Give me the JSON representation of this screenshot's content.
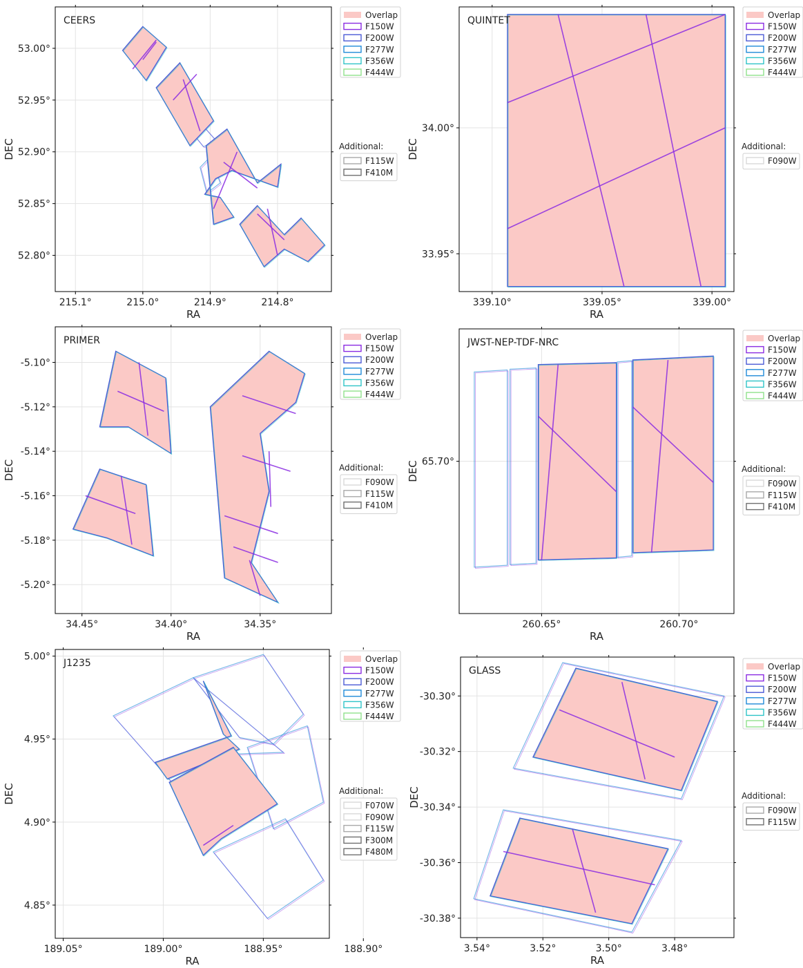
{
  "colors": {
    "overlap": "#fbc9c6",
    "F150W": "#8a2be2",
    "F200W": "#4b5ad6",
    "F277W": "#1f8ad8",
    "F356W": "#2fc4c8",
    "F444W": "#90e08c",
    "add_light": "#d8d8d8",
    "add_mid": "#a9a9a9",
    "add_dark": "#707070",
    "grid": "#e3e3e3",
    "axis": "#000000"
  },
  "legend_main": [
    "Overlap",
    "F150W",
    "F200W",
    "F277W",
    "F356W",
    "F444W"
  ],
  "additional_title": "Additional:",
  "chart_data": [
    {
      "type": "sky-footprint",
      "title": "CEERS",
      "xlabel": "RA",
      "ylabel": "DEC",
      "xlim": [
        215.13,
        214.72
      ],
      "ylim": [
        52.765,
        53.04
      ],
      "xticks": [
        {
          "v": 215.1,
          "label": "215.1°"
        },
        {
          "v": 215.0,
          "label": "215.0°"
        },
        {
          "v": 214.9,
          "label": "214.9°"
        },
        {
          "v": 214.8,
          "label": "214.8°"
        }
      ],
      "yticks": [
        {
          "v": 53.0,
          "label": "53.00°"
        },
        {
          "v": 52.95,
          "label": "52.95°"
        },
        {
          "v": 52.9,
          "label": "52.90°"
        },
        {
          "v": 52.85,
          "label": "52.85°"
        },
        {
          "v": 52.8,
          "label": "52.80°"
        }
      ],
      "additional": [
        "F115W",
        "F410M"
      ],
      "polygons": [
        [
          [
            215.03,
            52.998
          ],
          [
            215.0,
            53.021
          ],
          [
            214.965,
            53.001
          ],
          [
            214.995,
            52.969
          ]
        ],
        [
          [
            214.98,
            52.962
          ],
          [
            214.945,
            52.986
          ],
          [
            214.895,
            52.93
          ],
          [
            214.93,
            52.906
          ]
        ],
        [
          [
            214.906,
            52.906
          ],
          [
            214.875,
            52.922
          ],
          [
            214.83,
            52.87
          ],
          [
            214.795,
            52.888
          ],
          [
            214.8,
            52.866
          ],
          [
            214.868,
            52.882
          ],
          [
            214.892,
            52.874
          ],
          [
            214.908,
            52.859
          ],
          [
            214.885,
            52.856
          ],
          [
            214.865,
            52.837
          ],
          [
            214.895,
            52.83
          ]
        ],
        [
          [
            214.856,
            52.83
          ],
          [
            214.83,
            52.848
          ],
          [
            214.79,
            52.82
          ],
          [
            214.765,
            52.836
          ],
          [
            214.73,
            52.81
          ],
          [
            214.755,
            52.794
          ],
          [
            214.79,
            52.806
          ],
          [
            214.82,
            52.789
          ]
        ]
      ],
      "segments": [
        [
          [
            215.0,
            52.989
          ],
          [
            214.98,
            53.006
          ]
        ],
        [
          [
            215.015,
            52.98
          ],
          [
            214.98,
            53.008
          ]
        ],
        [
          [
            214.955,
            52.95
          ],
          [
            214.92,
            52.975
          ]
        ],
        [
          [
            214.94,
            52.97
          ],
          [
            214.915,
            52.92
          ]
        ],
        [
          [
            214.88,
            52.89
          ],
          [
            214.83,
            52.865
          ]
        ],
        [
          [
            214.86,
            52.9
          ],
          [
            214.895,
            52.845
          ]
        ],
        [
          [
            214.83,
            52.84
          ],
          [
            214.79,
            52.815
          ]
        ],
        [
          [
            214.815,
            52.845
          ],
          [
            214.8,
            52.8
          ]
        ]
      ],
      "outlines_extra": [
        [
          [
            214.935,
            52.925
          ],
          [
            214.91,
            52.905
          ],
          [
            214.89,
            52.91
          ],
          [
            214.92,
            52.932
          ]
        ],
        [
          [
            214.9,
            52.895
          ],
          [
            214.885,
            52.87
          ],
          [
            214.905,
            52.86
          ],
          [
            214.915,
            52.885
          ]
        ]
      ]
    },
    {
      "type": "sky-footprint",
      "title": "QUINTET",
      "xlabel": "RA",
      "ylabel": "DEC",
      "xlim": [
        339.115,
        338.99
      ],
      "ylim": [
        33.935,
        34.048
      ],
      "xticks": [
        {
          "v": 339.1,
          "label": "339.10°"
        },
        {
          "v": 339.05,
          "label": "339.05°"
        },
        {
          "v": 339.0,
          "label": "339.00°"
        }
      ],
      "yticks": [
        {
          "v": 34.0,
          "label": "34.00°"
        },
        {
          "v": 33.95,
          "label": "33.95°"
        }
      ],
      "additional": [
        "F090W"
      ],
      "polygons": [
        [
          [
            339.093,
            34.045
          ],
          [
            338.994,
            34.045
          ],
          [
            338.994,
            33.937
          ],
          [
            339.093,
            33.937
          ]
        ]
      ],
      "segments": [
        [
          [
            339.093,
            34.01
          ],
          [
            338.994,
            34.045
          ]
        ],
        [
          [
            339.093,
            33.96
          ],
          [
            338.994,
            34.0
          ]
        ],
        [
          [
            339.07,
            34.045
          ],
          [
            339.04,
            33.937
          ]
        ],
        [
          [
            339.03,
            34.045
          ],
          [
            339.005,
            33.937
          ]
        ]
      ],
      "outlines_extra": []
    },
    {
      "type": "sky-footprint",
      "title": "PRIMER",
      "xlabel": "RA",
      "ylabel": "DEC",
      "xlim": [
        34.465,
        34.31
      ],
      "ylim": [
        -5.213,
        -5.084
      ],
      "xticks": [
        {
          "v": 34.45,
          "label": "34.45°"
        },
        {
          "v": 34.4,
          "label": "34.40°"
        },
        {
          "v": 34.35,
          "label": "34.35°"
        }
      ],
      "yticks": [
        {
          "v": -5.1,
          "label": "-5.10°"
        },
        {
          "v": -5.12,
          "label": "-5.12°"
        },
        {
          "v": -5.14,
          "label": "-5.14°"
        },
        {
          "v": -5.16,
          "label": "-5.16°"
        },
        {
          "v": -5.18,
          "label": "-5.18°"
        },
        {
          "v": -5.2,
          "label": "-5.20°"
        }
      ],
      "additional": [
        "F090W",
        "F115W",
        "F410M"
      ],
      "polygons": [
        [
          [
            34.431,
            -5.095
          ],
          [
            34.403,
            -5.107
          ],
          [
            34.4,
            -5.141
          ],
          [
            34.424,
            -5.129
          ],
          [
            34.44,
            -5.129
          ]
        ],
        [
          [
            34.44,
            -5.148
          ],
          [
            34.414,
            -5.155
          ],
          [
            34.41,
            -5.187
          ],
          [
            34.436,
            -5.179
          ],
          [
            34.455,
            -5.175
          ]
        ],
        [
          [
            34.345,
            -5.095
          ],
          [
            34.325,
            -5.105
          ],
          [
            34.33,
            -5.118
          ],
          [
            34.35,
            -5.132
          ],
          [
            34.345,
            -5.158
          ],
          [
            34.355,
            -5.19
          ],
          [
            34.34,
            -5.208
          ],
          [
            34.37,
            -5.197
          ],
          [
            34.378,
            -5.12
          ]
        ]
      ],
      "segments": [
        [
          [
            34.43,
            -5.113
          ],
          [
            34.404,
            -5.122
          ]
        ],
        [
          [
            34.418,
            -5.1
          ],
          [
            34.413,
            -5.133
          ]
        ],
        [
          [
            34.448,
            -5.16
          ],
          [
            34.42,
            -5.168
          ]
        ],
        [
          [
            34.428,
            -5.151
          ],
          [
            34.422,
            -5.182
          ]
        ],
        [
          [
            34.36,
            -5.115
          ],
          [
            34.33,
            -5.123
          ]
        ],
        [
          [
            34.36,
            -5.142
          ],
          [
            34.333,
            -5.149
          ]
        ],
        [
          [
            34.37,
            -5.169
          ],
          [
            34.34,
            -5.177
          ]
        ],
        [
          [
            34.365,
            -5.183
          ],
          [
            34.34,
            -5.19
          ]
        ],
        [
          [
            34.356,
            -5.189
          ],
          [
            34.35,
            -5.205
          ]
        ],
        [
          [
            34.345,
            -5.14
          ],
          [
            34.344,
            -5.165
          ]
        ]
      ],
      "outlines_extra": []
    },
    {
      "type": "sky-footprint",
      "title": "JWST-NEP-TDF-NRC",
      "xlabel": "RA",
      "ylabel": "DEC",
      "xlim": [
        260.62,
        260.72
      ],
      "ylim": [
        65.677,
        65.72
      ],
      "xticks": [
        {
          "v": 260.65,
          "label": "260.65°"
        },
        {
          "v": 260.7,
          "label": "260.70°"
        }
      ],
      "yticks": [
        {
          "v": 65.7,
          "label": "65.70°"
        }
      ],
      "additional": [
        "F090W",
        "F115W",
        "F410M"
      ],
      "polygons": [
        [
          [
            260.6488,
            65.7146
          ],
          [
            260.6772,
            65.7149
          ],
          [
            260.6772,
            65.6854
          ],
          [
            260.6488,
            65.6851
          ]
        ],
        [
          [
            260.6832,
            65.7153
          ],
          [
            260.7125,
            65.7159
          ],
          [
            260.7125,
            65.6866
          ],
          [
            260.6832,
            65.6862
          ]
        ]
      ],
      "segments": [
        [
          [
            260.656,
            65.7146
          ],
          [
            260.65,
            65.6851
          ]
        ],
        [
          [
            260.696,
            65.7153
          ],
          [
            260.69,
            65.6862
          ]
        ],
        [
          [
            260.6488,
            65.7068
          ],
          [
            260.6772,
            65.6954
          ]
        ],
        [
          [
            260.6832,
            65.7082
          ],
          [
            260.7125,
            65.6968
          ]
        ]
      ],
      "outlines_extra": [
        [
          [
            260.6255,
            65.7135
          ],
          [
            260.6375,
            65.7138
          ],
          [
            260.6375,
            65.6843
          ],
          [
            260.6255,
            65.684
          ]
        ],
        [
          [
            260.6385,
            65.7139
          ],
          [
            260.648,
            65.7141
          ],
          [
            260.648,
            65.6846
          ],
          [
            260.6385,
            65.6844
          ]
        ],
        [
          [
            260.6775,
            65.715
          ],
          [
            260.6828,
            65.7152
          ],
          [
            260.6828,
            65.6857
          ],
          [
            260.6775,
            65.6855
          ]
        ]
      ]
    },
    {
      "type": "sky-footprint",
      "title": "J1235",
      "xlabel": "RA",
      "ylabel": "DEC",
      "xlim": [
        189.054,
        188.917
      ],
      "ylim": [
        4.83,
        5.004
      ],
      "xticks": [
        {
          "v": 189.05,
          "label": "189.05°"
        },
        {
          "v": 189.0,
          "label": "189.00°"
        },
        {
          "v": 188.95,
          "label": "188.95°"
        },
        {
          "v": 188.9,
          "label": "188.90°"
        }
      ],
      "yticks": [
        {
          "v": 5.0,
          "label": "5.00°"
        },
        {
          "v": 4.95,
          "label": "4.95°"
        },
        {
          "v": 4.9,
          "label": "4.90°"
        },
        {
          "v": 4.85,
          "label": "4.85°"
        }
      ],
      "additional": [
        "F070W",
        "F090W",
        "F115W",
        "F300M",
        "F480M"
      ],
      "polygons": [
        [
          [
            188.98,
            4.985
          ],
          [
            188.97,
            4.953
          ],
          [
            188.962,
            4.944
          ],
          [
            188.998,
            4.926
          ],
          [
            189.004,
            4.936
          ],
          [
            188.966,
            4.952
          ]
        ],
        [
          [
            188.997,
            4.924
          ],
          [
            188.965,
            4.945
          ],
          [
            188.943,
            4.911
          ],
          [
            188.971,
            4.89
          ],
          [
            188.98,
            4.88
          ]
        ]
      ],
      "segments": [
        [
          [
            188.98,
            4.886
          ],
          [
            188.965,
            4.898
          ]
        ]
      ],
      "outlines_extra": [
        [
          [
            189.025,
            4.964
          ],
          [
            188.985,
            4.987
          ],
          [
            188.94,
            4.942
          ],
          [
            188.965,
            4.941
          ],
          [
            188.995,
            4.923
          ]
        ],
        [
          [
            188.985,
            4.987
          ],
          [
            188.95,
            5.001
          ],
          [
            188.93,
            4.965
          ],
          [
            188.945,
            4.947
          ],
          [
            188.962,
            4.951
          ]
        ],
        [
          [
            188.958,
            4.945
          ],
          [
            188.928,
            4.958
          ],
          [
            188.92,
            4.912
          ],
          [
            188.945,
            4.896
          ]
        ],
        [
          [
            188.975,
            4.882
          ],
          [
            188.939,
            4.902
          ],
          [
            188.92,
            4.865
          ],
          [
            188.948,
            4.842
          ]
        ]
      ]
    },
    {
      "type": "sky-footprint",
      "title": "GLASS",
      "xlabel": "RA",
      "ylabel": "DEC",
      "xlim": [
        3.545,
        3.462
      ],
      "ylim": [
        -30.387,
        -30.286
      ],
      "xticks": [
        {
          "v": 3.54,
          "label": "3.54°"
        },
        {
          "v": 3.52,
          "label": "3.52°"
        },
        {
          "v": 3.5,
          "label": "3.50°"
        },
        {
          "v": 3.48,
          "label": "3.48°"
        }
      ],
      "yticks": [
        {
          "v": -30.3,
          "label": "-30.30°"
        },
        {
          "v": -30.32,
          "label": "-30.32°"
        },
        {
          "v": -30.34,
          "label": "-30.34°"
        },
        {
          "v": -30.36,
          "label": "-30.36°"
        },
        {
          "v": -30.38,
          "label": "-30.38°"
        }
      ],
      "additional": [
        "F090W",
        "F115W"
      ],
      "polygons": [
        [
          [
            3.51,
            -30.29
          ],
          [
            3.467,
            -30.302
          ],
          [
            3.478,
            -30.334
          ],
          [
            3.523,
            -30.322
          ]
        ],
        [
          [
            3.527,
            -30.344
          ],
          [
            3.482,
            -30.355
          ],
          [
            3.493,
            -30.382
          ],
          [
            3.536,
            -30.372
          ]
        ]
      ],
      "segments": [
        [
          [
            3.515,
            -30.305
          ],
          [
            3.48,
            -30.322
          ]
        ],
        [
          [
            3.496,
            -30.295
          ],
          [
            3.489,
            -30.33
          ]
        ],
        [
          [
            3.532,
            -30.356
          ],
          [
            3.486,
            -30.368
          ]
        ],
        [
          [
            3.511,
            -30.348
          ],
          [
            3.504,
            -30.378
          ]
        ]
      ],
      "outlines_extra": [
        [
          [
            3.514,
            -30.288
          ],
          [
            3.465,
            -30.3
          ],
          [
            3.478,
            -30.337
          ],
          [
            3.529,
            -30.326
          ]
        ],
        [
          [
            3.532,
            -30.341
          ],
          [
            3.478,
            -30.352
          ],
          [
            3.493,
            -30.385
          ],
          [
            3.541,
            -30.373
          ]
        ]
      ]
    }
  ]
}
